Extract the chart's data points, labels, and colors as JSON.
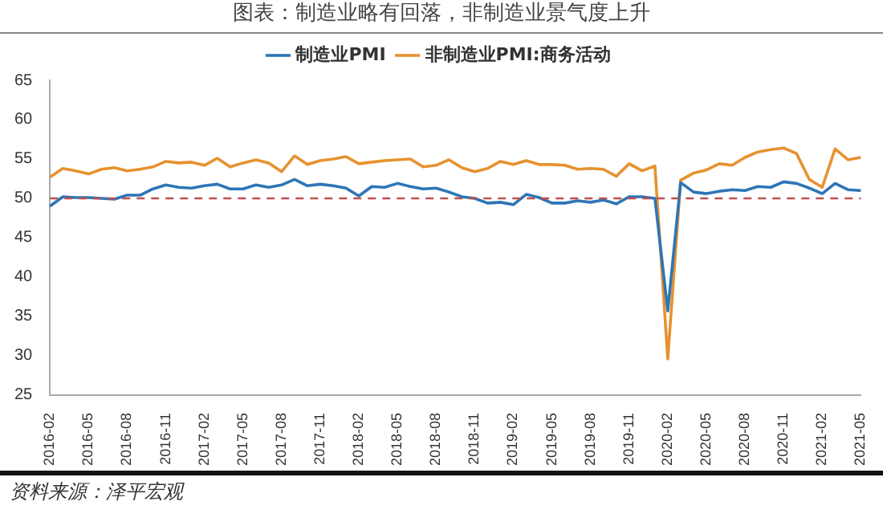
{
  "chart_data": {
    "type": "line",
    "title": "图表：制造业略有回落，非制造业景气度上升",
    "categories": [
      "2016-02",
      null,
      null,
      "2016-05",
      null,
      null,
      "2016-08",
      null,
      null,
      "2016-11",
      null,
      null,
      "2017-02",
      null,
      null,
      "2017-05",
      null,
      null,
      "2017-08",
      null,
      null,
      "2017-11",
      null,
      null,
      "2018-02",
      null,
      null,
      "2018-05",
      null,
      null,
      "2018-08",
      null,
      null,
      "2018-11",
      null,
      null,
      "2019-02",
      null,
      null,
      "2019-05",
      null,
      null,
      "2019-08",
      null,
      null,
      "2019-11",
      null,
      null,
      "2020-02",
      null,
      null,
      "2020-05",
      null,
      null,
      "2020-08",
      null,
      null,
      "2020-11",
      null,
      null,
      "2021-02",
      null,
      null,
      "2021-05"
    ],
    "series": [
      {
        "name": "制造业PMI",
        "color": "#2e75b6",
        "values": [
          49.0,
          50.2,
          50.1,
          50.1,
          50.0,
          49.9,
          50.4,
          50.4,
          51.2,
          51.7,
          51.4,
          51.3,
          51.6,
          51.8,
          51.2,
          51.2,
          51.7,
          51.4,
          51.7,
          52.4,
          51.6,
          51.8,
          51.6,
          51.3,
          50.3,
          51.5,
          51.4,
          51.9,
          51.5,
          51.2,
          51.3,
          50.8,
          50.2,
          50.0,
          49.4,
          49.5,
          49.2,
          50.5,
          50.1,
          49.4,
          49.4,
          49.7,
          49.5,
          49.8,
          49.3,
          50.2,
          50.2,
          50.0,
          35.7,
          52.0,
          50.8,
          50.6,
          50.9,
          51.1,
          51.0,
          51.5,
          51.4,
          52.1,
          51.9,
          51.3,
          50.6,
          51.9,
          51.1,
          51.0
        ]
      },
      {
        "name": "非制造业PMI:商务活动",
        "color": "#e6922f",
        "values": [
          52.7,
          53.8,
          53.5,
          53.1,
          53.7,
          53.9,
          53.5,
          53.7,
          54.0,
          54.7,
          54.5,
          54.6,
          54.2,
          55.1,
          54.0,
          54.5,
          54.9,
          54.5,
          53.4,
          55.4,
          54.3,
          54.8,
          55.0,
          55.3,
          54.4,
          54.6,
          54.8,
          54.9,
          55.0,
          54.0,
          54.2,
          54.9,
          53.9,
          53.4,
          53.8,
          54.7,
          54.3,
          54.8,
          54.3,
          54.3,
          54.2,
          53.7,
          53.8,
          53.7,
          52.8,
          54.4,
          53.5,
          54.1,
          29.6,
          52.3,
          53.2,
          53.6,
          54.4,
          54.2,
          55.2,
          55.9,
          56.2,
          56.4,
          55.7,
          52.4,
          51.4,
          56.3,
          54.9,
          55.2
        ]
      }
    ],
    "ylim": [
      25,
      65
    ],
    "yticks": [
      25,
      30,
      35,
      40,
      45,
      50,
      55,
      60,
      65
    ],
    "grid": false,
    "legend": "top",
    "marker": "none",
    "line_style": "solid",
    "ref_lines": [
      {
        "axis": "y",
        "value": 50,
        "color": "#c0504d",
        "line_style": "dashed"
      }
    ],
    "annotations": [
      "资料来源：泽平宏观"
    ]
  }
}
